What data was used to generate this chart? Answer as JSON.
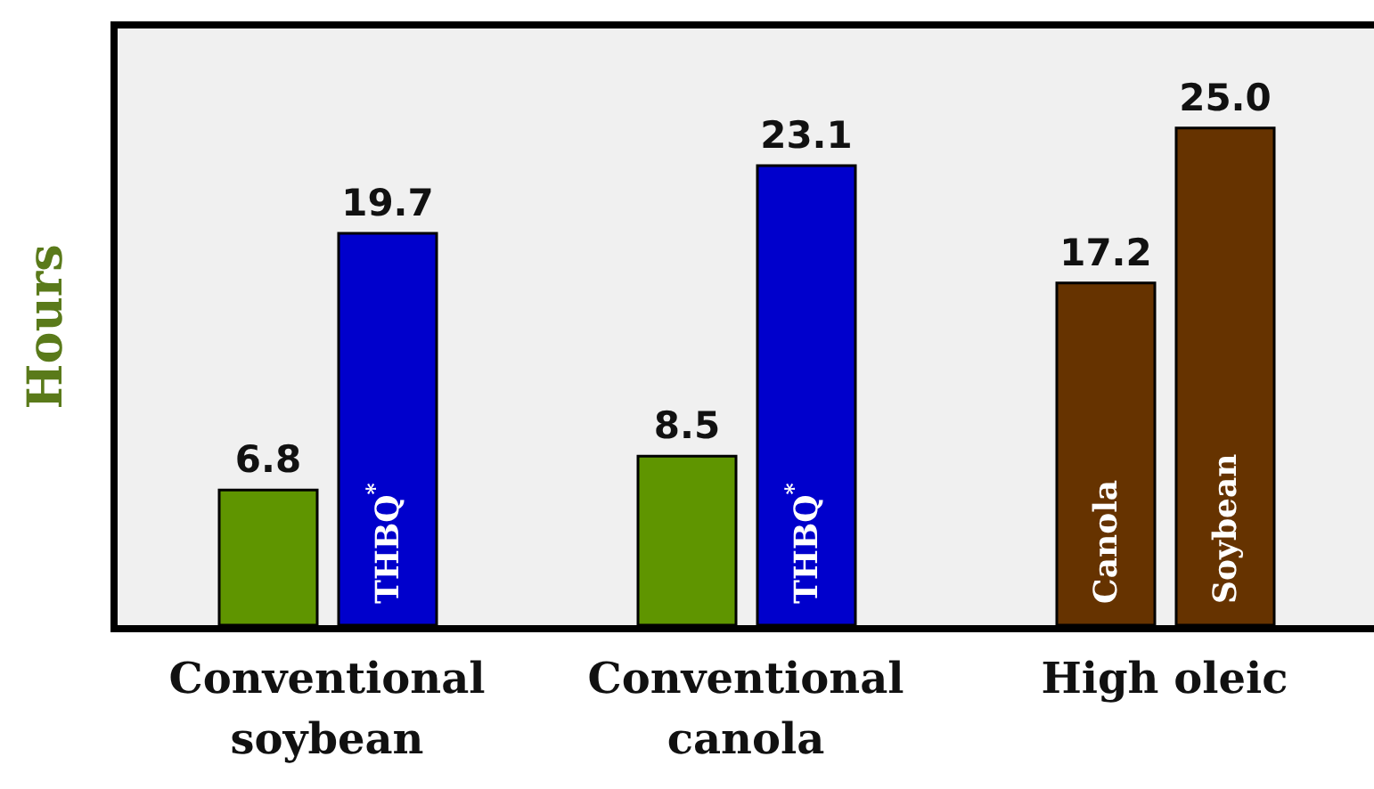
{
  "chart_data": {
    "type": "bar",
    "ylabel": "Hours",
    "categories": [
      "Conventional soybean",
      "Conventional canola",
      "High oleic"
    ],
    "series": [
      {
        "colors": [
          "#5f9500",
          "#5f9500",
          "#663300"
        ],
        "values": [
          6.8,
          8.5,
          17.2
        ],
        "value_labels": [
          "6.8",
          "8.5",
          "17.2"
        ]
      },
      {
        "colors": [
          "#0000cc",
          "#0000cc",
          "#663300"
        ],
        "values": [
          19.7,
          23.1,
          25.0
        ],
        "value_labels": [
          "19.7",
          "23.1",
          "25.0"
        ]
      }
    ],
    "annotations": [
      "THBQ$^{*}$",
      "THBQ$^{*}$",
      "Canola",
      "Soybean"
    ]
  }
}
